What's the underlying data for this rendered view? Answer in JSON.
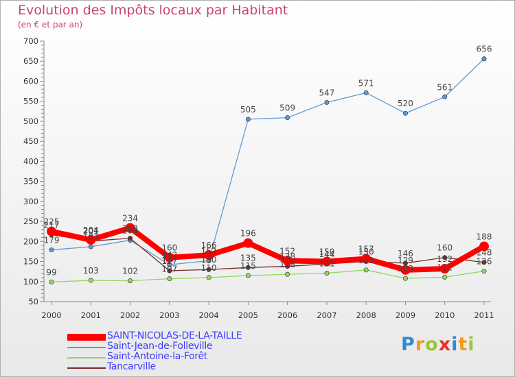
{
  "title": "Evolution des Impôts locaux par Habitant",
  "subtitle": "(en € et par an)",
  "logo": {
    "text": "Proxiti",
    "letters": [
      {
        "ch": "P",
        "color": "#2e8bd6"
      },
      {
        "ch": "r",
        "color": "#f39a1a"
      },
      {
        "ch": "o",
        "color": "#9bc53d"
      },
      {
        "ch": "x",
        "color": "#e6332a"
      },
      {
        "ch": "i",
        "color": "#2e8bd6"
      },
      {
        "ch": "t",
        "color": "#f39a1a"
      },
      {
        "ch": "i",
        "color": "#9bc53d"
      }
    ]
  },
  "chart_data": {
    "type": "line",
    "title": "Evolution des Impôts locaux par Habitant",
    "ylabel": "(en € et par an)",
    "xlabel": "",
    "ylim": [
      50,
      700
    ],
    "yticks": [
      50,
      100,
      150,
      200,
      250,
      300,
      350,
      400,
      450,
      500,
      550,
      600,
      650,
      700
    ],
    "categories": [
      "2000",
      "2001",
      "2002",
      "2003",
      "2004",
      "2005",
      "2006",
      "2007",
      "2008",
      "2009",
      "2010",
      "2011"
    ],
    "grid": false,
    "legend_position": "bottom-left",
    "series": [
      {
        "name": "SAINT-NICOLAS-DE-LA-TAILLE",
        "color": "#ff0000",
        "values": [
          225,
          204,
          234,
          160,
          166,
          196,
          152,
          150,
          157,
          129,
          132,
          188
        ],
        "labels": [
          "225",
          "204",
          "234",
          "160",
          "166",
          "196",
          "152",
          "150",
          "157",
          "129",
          "132",
          "188"
        ]
      },
      {
        "name": "Saint-Jean-de-Folleville",
        "color": "#5b9bd5",
        "values": [
          179,
          187,
          203,
          142,
          152,
          505,
          509,
          547,
          571,
          520,
          561,
          656
        ],
        "labels": [
          "179",
          "187",
          "203",
          "142",
          "152",
          "505",
          "509",
          "547",
          "571",
          "520",
          "561",
          "656"
        ]
      },
      {
        "name": "Saint-Antoine-la-Forêt",
        "color": "#90d860",
        "values": [
          99,
          103,
          102,
          107,
          110,
          115,
          118,
          121,
          129,
          108,
          111,
          126
        ],
        "labels": [
          "99",
          "103",
          "102",
          "107",
          "110",
          "115",
          "118",
          "121",
          "129",
          "108",
          "111",
          "126"
        ]
      },
      {
        "name": "Tancarville",
        "color": "#7a2a2a",
        "values": [
          217,
          201,
          208,
          127,
          130,
          135,
          138,
          144,
          150,
          146,
          160,
          148
        ],
        "labels": [
          "217",
          "201",
          "208",
          "127",
          "130",
          "135",
          "138",
          "144",
          "150",
          "146",
          "160",
          "148"
        ]
      }
    ]
  }
}
